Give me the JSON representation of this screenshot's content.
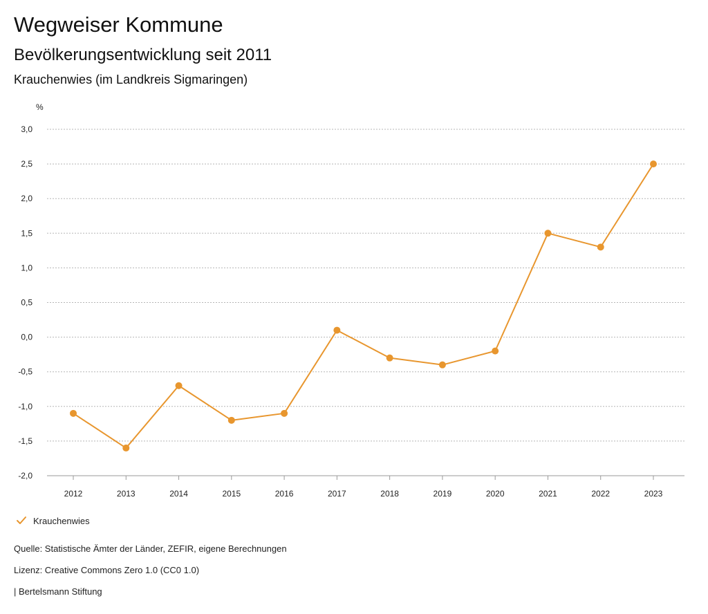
{
  "header": {
    "title": "Wegweiser Kommune",
    "subtitle": "Bevölkerungsentwicklung seit 2011",
    "place": "Krauchenwies (im Landkreis Sigmaringen)"
  },
  "chart_data": {
    "type": "line",
    "title": "Bevölkerungsentwicklung seit 2011",
    "ylabel": "%",
    "xlabel": "",
    "categories": [
      "2012",
      "2013",
      "2014",
      "2015",
      "2016",
      "2017",
      "2018",
      "2019",
      "2020",
      "2021",
      "2022",
      "2023"
    ],
    "series": [
      {
        "name": "Krauchenwies",
        "color": "#e8962e",
        "values": [
          -1.1,
          -1.6,
          -0.7,
          -1.2,
          -1.1,
          0.1,
          -0.3,
          -0.4,
          -0.2,
          1.5,
          1.3,
          2.5
        ]
      }
    ],
    "ylim": [
      -2.0,
      3.0
    ],
    "yticks": [
      3.0,
      2.5,
      2.0,
      1.5,
      1.0,
      0.5,
      0.0,
      -0.5,
      -1.0,
      -1.5,
      -2.0
    ],
    "ytick_labels": [
      "3,0",
      "2,5",
      "2,0",
      "1,5",
      "1,0",
      "0,5",
      "0,0",
      "-0,5",
      "-1,0",
      "-1,5",
      "-2,0"
    ],
    "grid": true,
    "legend": "bottom-left"
  },
  "legend": {
    "label": "Krauchenwies",
    "icon": "check-icon"
  },
  "footer": {
    "source": "Quelle: Statistische Ämter der Länder, ZEFIR, eigene Berechnungen",
    "license": "Lizenz: Creative Commons Zero 1.0 (CC0 1.0)",
    "brand": "| Bertelsmann Stiftung"
  }
}
